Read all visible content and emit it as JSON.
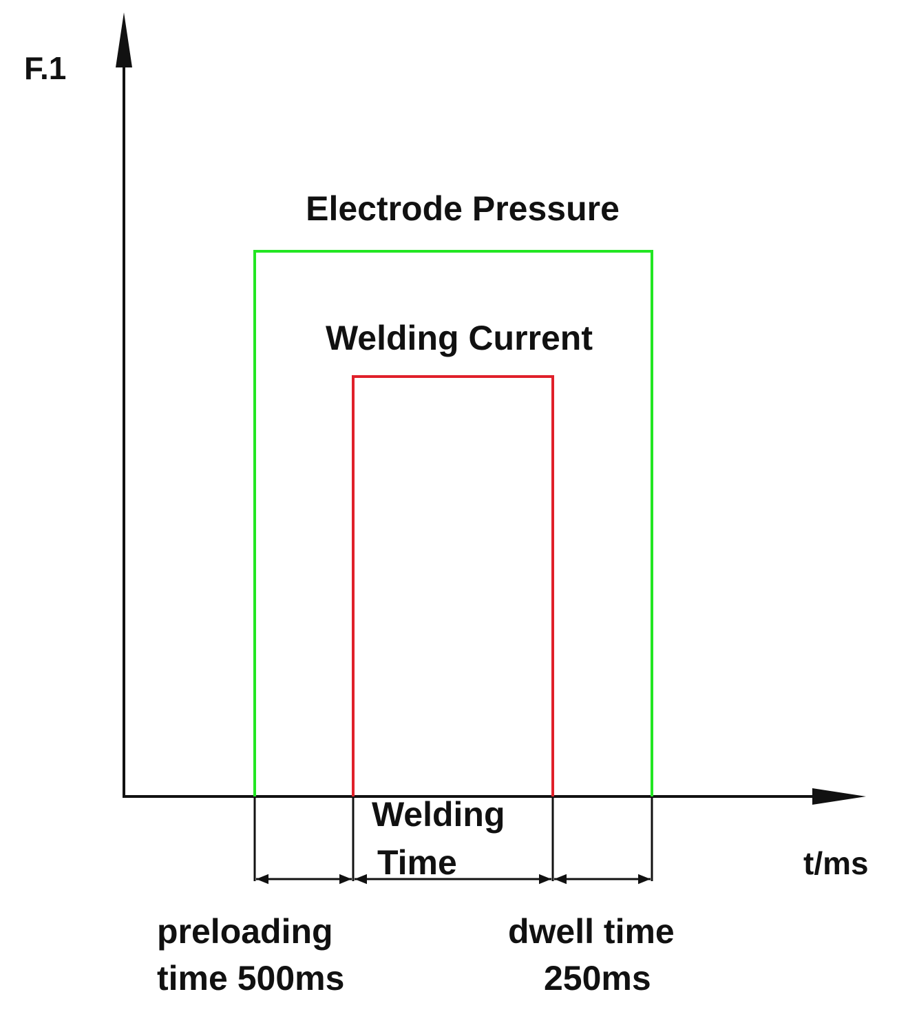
{
  "axes": {
    "y_label": "F.1",
    "x_label": "t/ms"
  },
  "signals": {
    "electrode_pressure": "Electrode Pressure",
    "welding_current": "Welding Current"
  },
  "intervals": {
    "welding_time": [
      "Welding",
      "Time"
    ],
    "preloading_time": [
      "preloading",
      "time 500ms"
    ],
    "dwell_time": [
      "dwell time",
      "250ms"
    ]
  }
}
